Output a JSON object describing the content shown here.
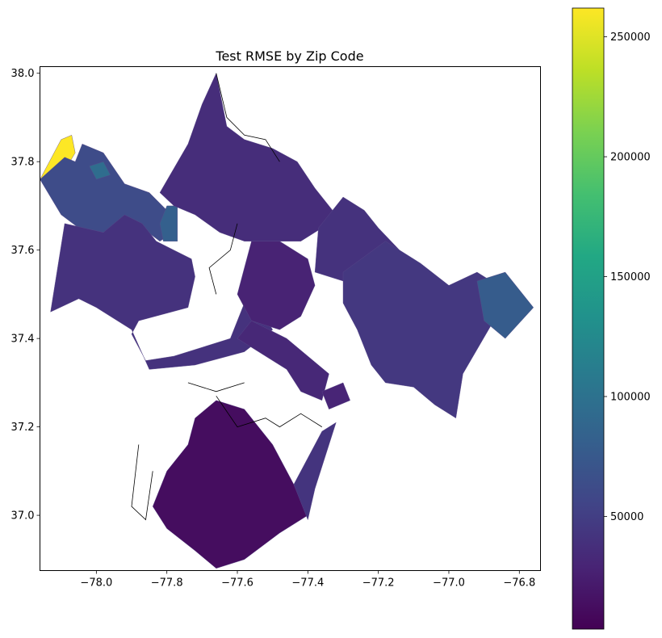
{
  "chart_data": {
    "type": "choropleth-map",
    "title": "Test RMSE by Zip Code",
    "xlabel": "",
    "ylabel": "",
    "xlim": [
      -78.16,
      -76.74
    ],
    "ylim": [
      36.875,
      38.015
    ],
    "x_ticks": [
      -78.0,
      -77.8,
      -77.6,
      -77.4,
      -77.2,
      -77.0,
      -76.8
    ],
    "x_tick_labels": [
      "−78.0",
      "−77.8",
      "−77.6",
      "−77.4",
      "−77.2",
      "−77.0",
      "−76.8"
    ],
    "y_ticks": [
      37.0,
      37.2,
      37.4,
      37.6,
      37.8,
      38.0
    ],
    "y_tick_labels": [
      "37.0",
      "37.2",
      "37.4",
      "37.6",
      "37.8",
      "38.0"
    ],
    "colorbar": {
      "colormap": "viridis",
      "range": [
        3000,
        262000
      ],
      "ticks": [
        50000,
        100000,
        150000,
        200000,
        250000
      ],
      "tick_labels": [
        "50000",
        "100000",
        "150000",
        "200000",
        "250000"
      ]
    },
    "regions": [
      {
        "id": "far-west-yellow",
        "value": 262000
      },
      {
        "id": "goochland-west",
        "value": 62000
      },
      {
        "id": "goochland-teal",
        "value": 95000
      },
      {
        "id": "goochland-east-teal",
        "value": 82000
      },
      {
        "id": "powhatan-west",
        "value": 40000
      },
      {
        "id": "north-hanover",
        "value": 36000
      },
      {
        "id": "east-henrico",
        "value": 40000
      },
      {
        "id": "new-kent-charles-city",
        "value": 45000
      },
      {
        "id": "james-city-east-teal",
        "value": 78000
      },
      {
        "id": "richmond-city",
        "value": 28000
      },
      {
        "id": "chesterfield-north",
        "value": 32000
      },
      {
        "id": "dinwiddie-south",
        "value": 12000
      },
      {
        "id": "prince-george-east",
        "value": 42000
      },
      {
        "id": "hopewell",
        "value": 30000
      }
    ],
    "grid": false
  }
}
